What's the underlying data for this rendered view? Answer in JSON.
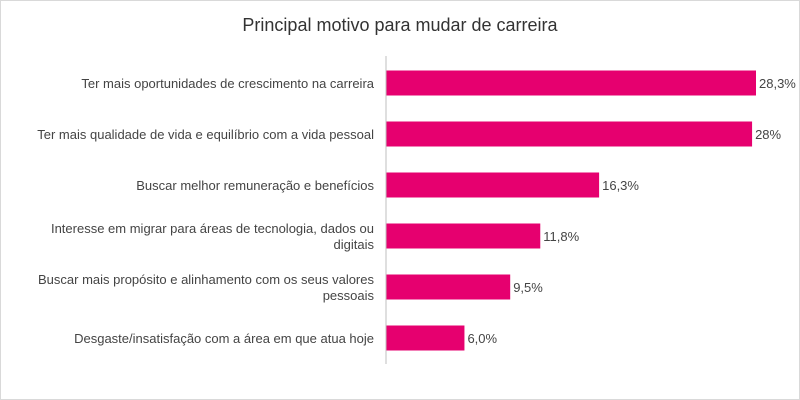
{
  "chart_data": {
    "type": "bar",
    "orientation": "horizontal",
    "title": "Principal motivo para mudar de carreira",
    "categories": [
      [
        "Ter mais oportunidades de crescimento na carreira"
      ],
      [
        "Ter mais qualidade de vida e equilíbrio com a vida pessoal"
      ],
      [
        "Buscar melhor remuneração e benefícios"
      ],
      [
        "Interesse em migrar para áreas de tecnologia, dados ou",
        "digitais"
      ],
      [
        "Buscar mais propósito e alinhamento com os seus valores",
        "pessoais"
      ],
      [
        "Desgaste/insatisfação com a área em que atua hoje"
      ]
    ],
    "values": [
      28.3,
      28,
      16.3,
      11.8,
      9.5,
      6.0
    ],
    "value_labels": [
      "28,3%",
      "28%",
      "16,3%",
      "11,8%",
      "9,5%",
      "6,0%"
    ],
    "xlim": [
      0,
      28.3
    ],
    "grid": false,
    "legend": "none",
    "bar_color": "#E6006F",
    "axis_color": "#bfbfbf"
  }
}
